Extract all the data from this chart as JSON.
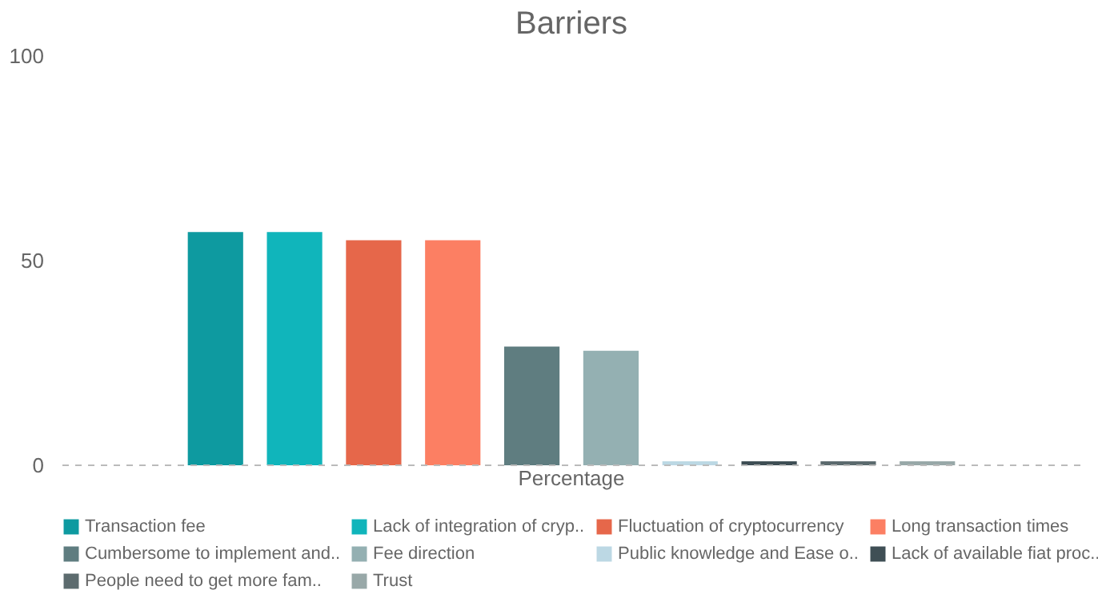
{
  "chart_data": {
    "type": "bar",
    "title": "Barriers",
    "categories": [
      "Percentage"
    ],
    "series": [
      {
        "name": "Transaction fee",
        "color": "#0e9aa0",
        "values": [
          57
        ]
      },
      {
        "name": "Lack of integration of cryp..",
        "color": "#10b5bb",
        "values": [
          57
        ]
      },
      {
        "name": "Fluctuation of cryptocurrency",
        "color": "#e6674a",
        "values": [
          55
        ]
      },
      {
        "name": "Long transaction times",
        "color": "#fc7f63",
        "values": [
          55
        ]
      },
      {
        "name": "Cumbersome to implement and..",
        "color": "#5f7d80",
        "values": [
          29
        ]
      },
      {
        "name": "Fee direction",
        "color": "#94b0b2",
        "values": [
          28
        ]
      },
      {
        "name": "Public knowledge and Ease o..",
        "color": "#bcd8e4",
        "values": [
          1
        ]
      },
      {
        "name": "Lack of available fiat proc..",
        "color": "#3f4f55",
        "values": [
          1
        ]
      },
      {
        "name": "People need to get more fam..",
        "color": "#5c6b6e",
        "values": [
          1
        ]
      },
      {
        "name": "Trust",
        "color": "#98a8a8",
        "values": [
          1
        ]
      }
    ],
    "ylim": [
      0,
      100
    ],
    "yticks": [
      0,
      50,
      100
    ],
    "grid": false,
    "legend": "bottom",
    "ref_lines": [
      {
        "axis": "y",
        "value": 0,
        "line_style": "dashed",
        "color": "#bbbbbb"
      }
    ]
  }
}
